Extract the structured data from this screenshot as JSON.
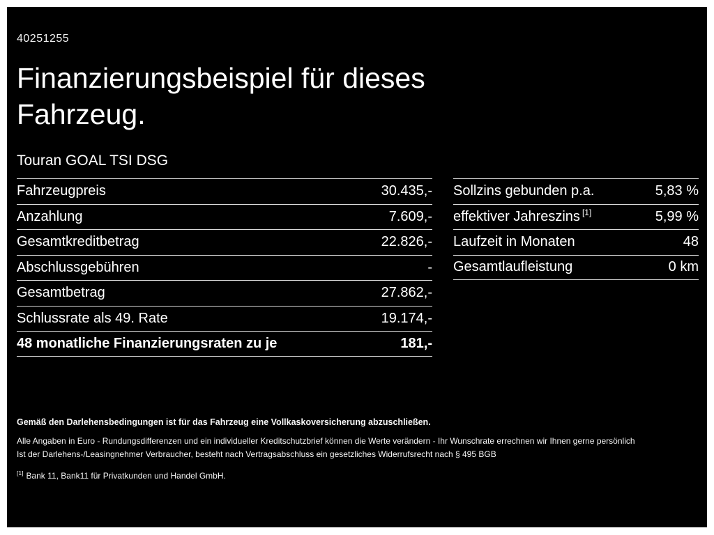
{
  "page": {
    "document_number": "40251255",
    "title_line1": "Finanzierungsbeispiel für dieses",
    "title_line2": "Fahrzeug.",
    "vehicle_model": "Touran GOAL TSI DSG"
  },
  "financing_table": {
    "rows": [
      {
        "label": "Fahrzeugpreis",
        "value": "30.435,-"
      },
      {
        "label": "Anzahlung",
        "value": "7.609,-"
      },
      {
        "label": "Gesamtkreditbetrag",
        "value": "22.826,-"
      },
      {
        "label": "Abschlussgebühren",
        "value": "-"
      },
      {
        "label": "Gesamtbetrag",
        "value": "27.862,-"
      },
      {
        "label": "Schlussrate als 49. Rate",
        "value": "19.174,-"
      },
      {
        "label": "48 monatliche Finanzierungsraten zu je",
        "value": "181,-"
      }
    ]
  },
  "conditions_table": {
    "rows": [
      {
        "label": "Sollzins gebunden p.a.",
        "marker": "",
        "value": "5,83 %"
      },
      {
        "label": "effektiver Jahreszins",
        "marker": "[1]",
        "value": "5,99 %"
      },
      {
        "label": "Laufzeit in Monaten",
        "marker": "",
        "value": "48"
      },
      {
        "label": "Gesamtlaufleistung",
        "marker": "",
        "value": "0 km"
      }
    ]
  },
  "footer": {
    "insurance_note": "Gemäß den Darlehensbedingungen ist für das Fahrzeug eine Vollkaskoversicherung abzuschließen.",
    "disclaimer_line1": "Alle Angaben in Euro - Rundungsdifferenzen und ein individueller Kreditschutzbrief können die Werte verändern - Ihr Wunschrate errechnen wir Ihnen gerne persönlich",
    "disclaimer_line2": "Ist der Darlehens-/Leasingnehmer Verbraucher, besteht nach Vertragsabschluss ein gesetzliches Widerrufsrecht nach § 495 BGB",
    "bank_footnote_marker": "[1]",
    "bank_footnote_text": "Bank 11, Bank11 für Privatkunden und Handel GmbH."
  }
}
